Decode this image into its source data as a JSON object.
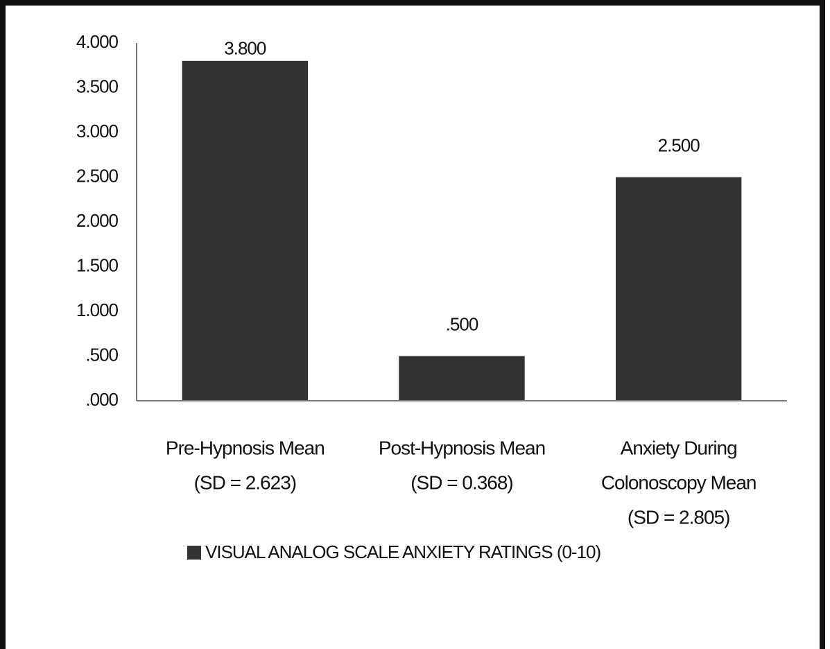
{
  "chart_data": {
    "type": "bar",
    "categories": [
      [
        "Pre-Hypnosis Mean",
        "(SD = 2.623)"
      ],
      [
        "Post-Hypnosis Mean",
        "(SD = 0.368)"
      ],
      [
        "Anxiety During",
        "Colonoscopy Mean",
        "(SD = 2.805)"
      ]
    ],
    "series": [
      {
        "name": "VISUAL ANALOG SCALE ANXIETY RATINGS (0-10)",
        "color": "#333333",
        "values": [
          3.8,
          0.5,
          2.5
        ],
        "value_labels": [
          "3.800",
          ".500",
          "2.500"
        ]
      }
    ],
    "ylim": [
      0,
      4
    ],
    "yticks": [
      {
        "value": 0,
        "label": ".000"
      },
      {
        "value": 0.5,
        "label": ".500"
      },
      {
        "value": 1,
        "label": "1.000"
      },
      {
        "value": 1.5,
        "label": "1.500"
      },
      {
        "value": 2,
        "label": "2.000"
      },
      {
        "value": 2.5,
        "label": "2.500"
      },
      {
        "value": 3,
        "label": "3.000"
      },
      {
        "value": 3.5,
        "label": "3.500"
      },
      {
        "value": 4,
        "label": "4.000"
      }
    ],
    "grid": false,
    "legend": "bottom"
  }
}
